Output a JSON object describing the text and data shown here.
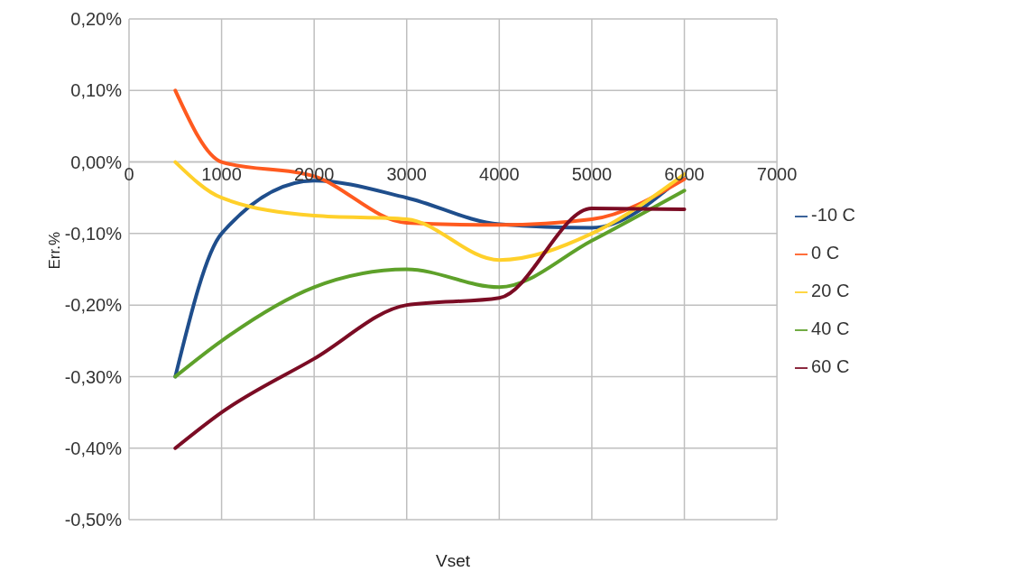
{
  "chart_data": {
    "type": "line",
    "xlabel": "Vset",
    "ylabel": "Err.%",
    "x": [
      500,
      1000,
      2000,
      3000,
      4000,
      5000,
      6000
    ],
    "series": [
      {
        "name": "-10 C",
        "color": "#1f4e8c",
        "values": [
          -0.3,
          -0.1,
          -0.026,
          -0.05,
          -0.087,
          -0.092,
          -0.018
        ]
      },
      {
        "name": "0 C",
        "color": "#ff5a1f",
        "values": [
          0.1,
          0.0,
          -0.02,
          -0.085,
          -0.088,
          -0.08,
          -0.024
        ]
      },
      {
        "name": "20 C",
        "color": "#ffd02a",
        "values": [
          0.0,
          -0.05,
          -0.075,
          -0.08,
          -0.137,
          -0.1,
          -0.017
        ]
      },
      {
        "name": "40 C",
        "color": "#5ea12a",
        "values": [
          -0.3,
          -0.25,
          -0.175,
          -0.15,
          -0.175,
          -0.11,
          -0.04
        ]
      },
      {
        "name": "60 C",
        "color": "#7b0c24",
        "values": [
          -0.4,
          -0.35,
          -0.275,
          -0.2,
          -0.19,
          -0.065,
          -0.066
        ]
      }
    ],
    "xlim": [
      0,
      7000
    ],
    "xticks": [
      0,
      1000,
      2000,
      3000,
      4000,
      5000,
      6000,
      7000
    ],
    "ylim": [
      -0.5,
      0.2
    ],
    "yticks": [
      {
        "value": 0.2,
        "label": "0,20%"
      },
      {
        "value": 0.1,
        "label": "0,10%"
      },
      {
        "value": 0,
        "label": "0,00%"
      },
      {
        "value": -0.1,
        "label": "-0,10%"
      },
      {
        "value": -0.2,
        "label": "-0,20%"
      },
      {
        "value": -0.3,
        "label": "-0,30%"
      },
      {
        "value": -0.4,
        "label": "-0,40%"
      },
      {
        "value": -0.5,
        "label": "-0,50%"
      }
    ],
    "grid": true,
    "legend": "right",
    "marker": "none",
    "line_style": "solid"
  }
}
